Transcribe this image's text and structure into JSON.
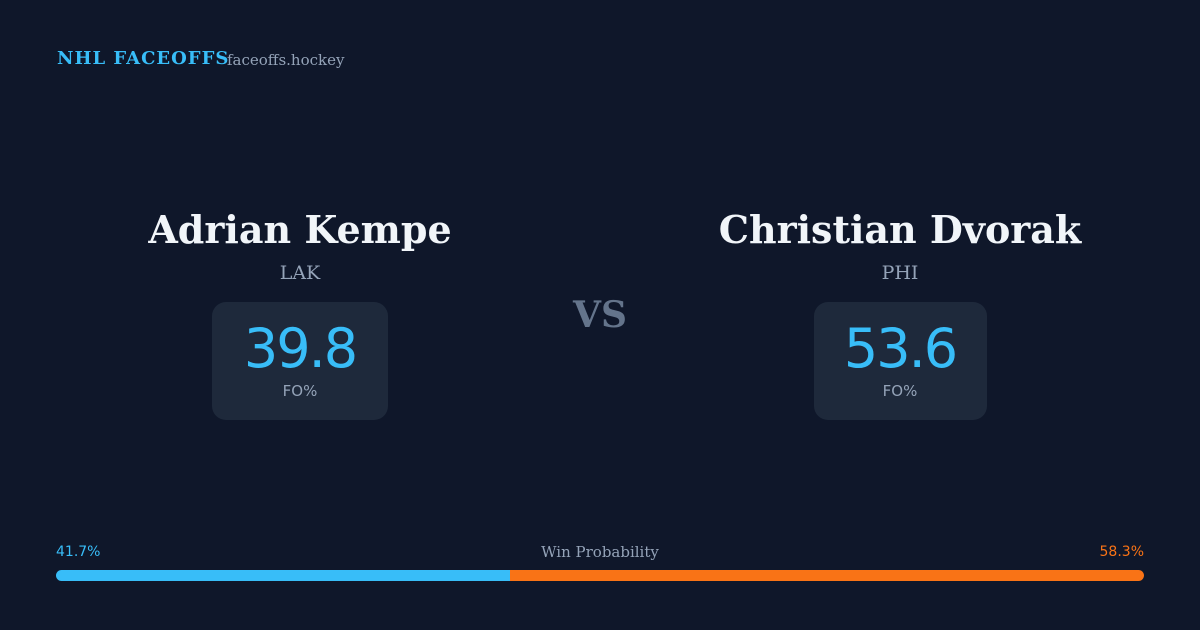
{
  "header": {
    "title": "NHL FACEOFFS",
    "site": "faceoffs.hockey"
  },
  "players": [
    {
      "name": "Adrian Kempe",
      "team": "LAK",
      "stat": "39.8",
      "stat_label": "FO%"
    },
    {
      "name": "Christian Dvorak",
      "team": "PHI",
      "stat": "53.6",
      "stat_label": "FO%"
    }
  ],
  "versus": "VS",
  "win_probability": {
    "label": "Win Probability",
    "values": [
      {
        "value": 41.7,
        "label": "41.7%"
      },
      {
        "value": 58.3,
        "label": "58.3%"
      }
    ],
    "colors": [
      "#38bdf8",
      "#f97316"
    ]
  }
}
